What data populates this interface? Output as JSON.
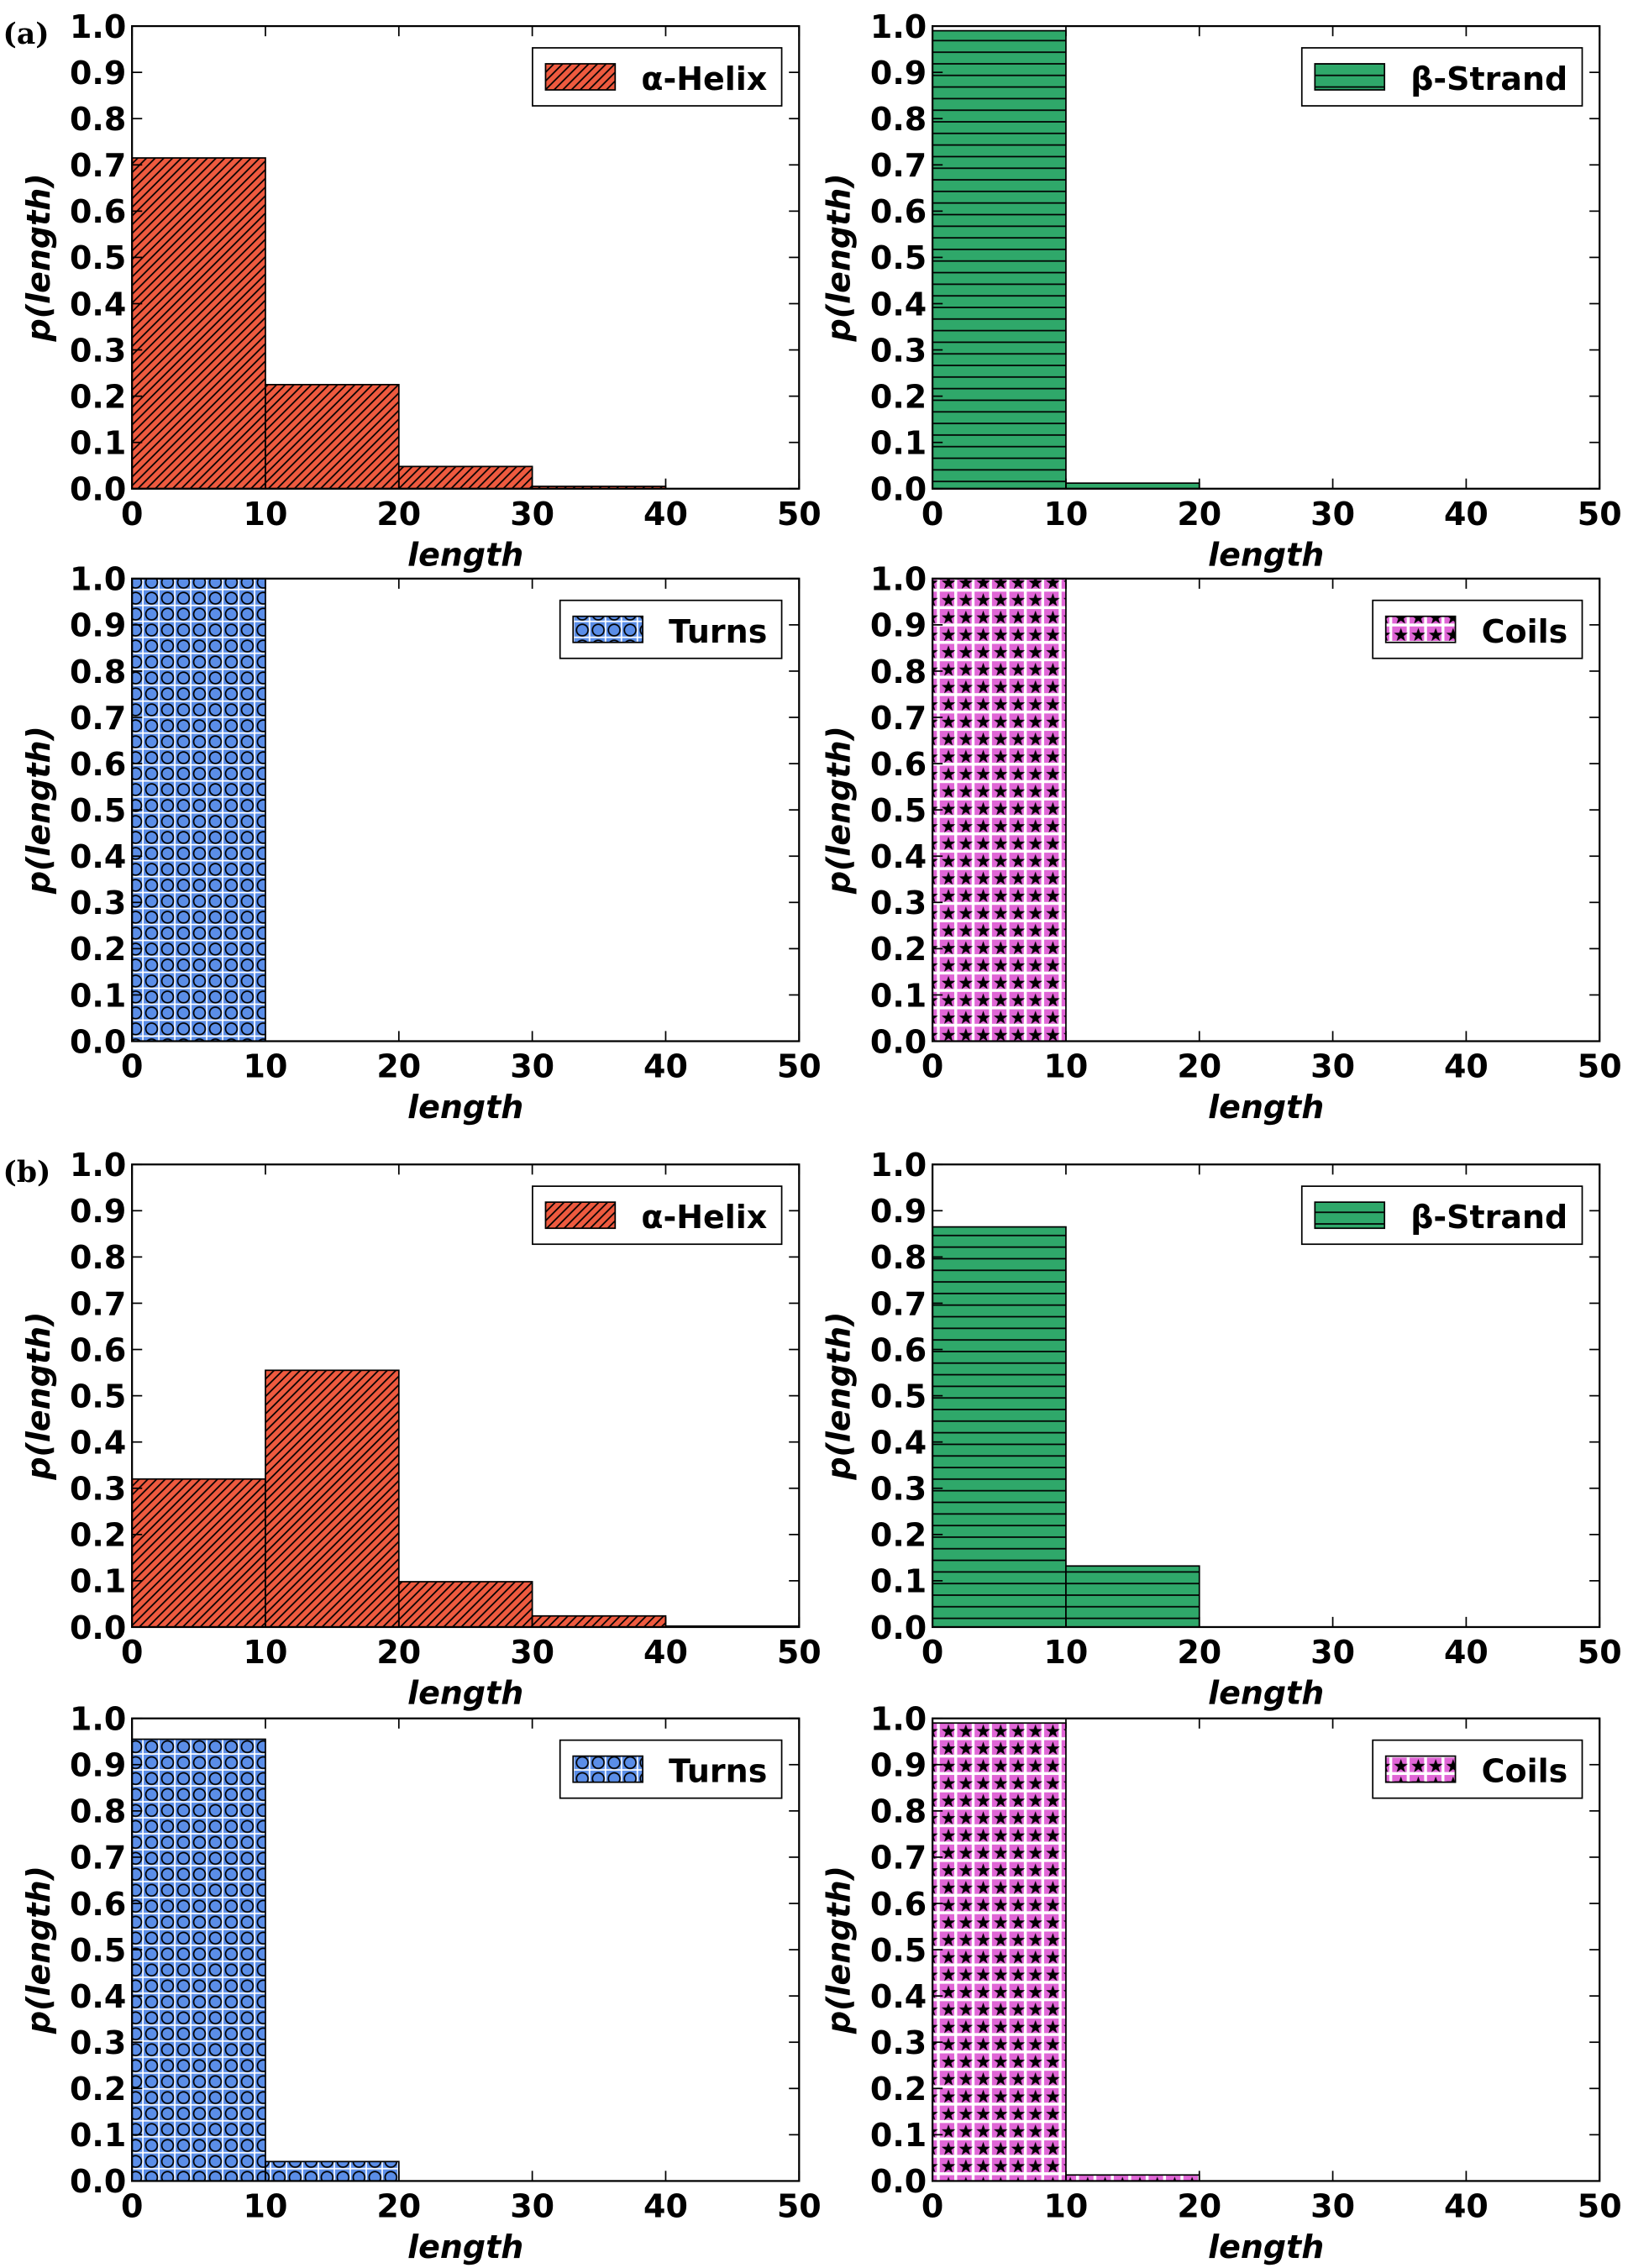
{
  "panel_labels": [
    "(a)",
    "(b)"
  ],
  "chart_data": [
    {
      "type": "histogram",
      "bins": [
        0,
        10,
        20,
        30,
        40,
        50
      ],
      "series": [
        {
          "name": "α-Helix",
          "color": "#ee5a3f",
          "hatch": "diagonal",
          "values": [
            0.715,
            0.225,
            0.048,
            0.005,
            0.0
          ]
        }
      ],
      "xlabel": "length",
      "ylabel": "p(length)",
      "xlim": [
        0,
        50
      ],
      "ylim": [
        0,
        1
      ],
      "xticks": [
        0,
        10,
        20,
        30,
        40,
        50
      ],
      "yticks": [
        {
          "value": 0,
          "label": "0.0"
        },
        0.1,
        0.2,
        0.3,
        0.4,
        0.5,
        0.6,
        0.7,
        0.8,
        0.9,
        {
          "value": 1,
          "label": "1.0"
        }
      ],
      "legend": "upper right"
    },
    {
      "type": "histogram",
      "bins": [
        0,
        10,
        20,
        30,
        40,
        50
      ],
      "series": [
        {
          "name": "β-Strand",
          "color": "#2fa86a",
          "hatch": "horizontal",
          "values": [
            0.99,
            0.012,
            0.0,
            0.0,
            0.0
          ]
        }
      ],
      "xlabel": "length",
      "ylabel": "p(length)",
      "xlim": [
        0,
        50
      ],
      "ylim": [
        0,
        1
      ],
      "xticks": [
        0,
        10,
        20,
        30,
        40,
        50
      ],
      "yticks": [
        {
          "value": 0,
          "label": "0.0"
        },
        0.1,
        0.2,
        0.3,
        0.4,
        0.5,
        0.6,
        0.7,
        0.8,
        0.9,
        {
          "value": 1,
          "label": "1.0"
        }
      ],
      "legend": "upper right"
    },
    {
      "type": "histogram",
      "bins": [
        0,
        10,
        20,
        30,
        40,
        50
      ],
      "series": [
        {
          "name": "Turns",
          "color": "#5b8ee8",
          "hatch": "circles",
          "values": [
            1.0,
            0.0,
            0.0,
            0.0,
            0.0
          ]
        }
      ],
      "xlabel": "length",
      "ylabel": "p(length)",
      "xlim": [
        0,
        50
      ],
      "ylim": [
        0,
        1
      ],
      "xticks": [
        0,
        10,
        20,
        30,
        40,
        50
      ],
      "yticks": [
        {
          "value": 0,
          "label": "0.0"
        },
        0.1,
        0.2,
        0.3,
        0.4,
        0.5,
        0.6,
        0.7,
        0.8,
        0.9,
        {
          "value": 1,
          "label": "1.0"
        }
      ],
      "legend": "upper right"
    },
    {
      "type": "histogram",
      "bins": [
        0,
        10,
        20,
        30,
        40,
        50
      ],
      "series": [
        {
          "name": "Coils",
          "color": "#e066d6",
          "hatch": "stars",
          "values": [
            1.0,
            0.0,
            0.0,
            0.0,
            0.0
          ]
        }
      ],
      "xlabel": "length",
      "ylabel": "p(length)",
      "xlim": [
        0,
        50
      ],
      "ylim": [
        0,
        1
      ],
      "xticks": [
        0,
        10,
        20,
        30,
        40,
        50
      ],
      "yticks": [
        {
          "value": 0,
          "label": "0.0"
        },
        0.1,
        0.2,
        0.3,
        0.4,
        0.5,
        0.6,
        0.7,
        0.8,
        0.9,
        {
          "value": 1,
          "label": "1.0"
        }
      ],
      "legend": "upper right"
    },
    {
      "type": "histogram",
      "bins": [
        0,
        10,
        20,
        30,
        40,
        50
      ],
      "series": [
        {
          "name": "α-Helix",
          "color": "#ee5a3f",
          "hatch": "diagonal",
          "values": [
            0.32,
            0.555,
            0.098,
            0.024,
            0.002
          ]
        }
      ],
      "xlabel": "length",
      "ylabel": "p(length)",
      "xlim": [
        0,
        50
      ],
      "ylim": [
        0,
        1
      ],
      "xticks": [
        0,
        10,
        20,
        30,
        40,
        50
      ],
      "yticks": [
        {
          "value": 0,
          "label": "0.0"
        },
        0.1,
        0.2,
        0.3,
        0.4,
        0.5,
        0.6,
        0.7,
        0.8,
        0.9,
        {
          "value": 1,
          "label": "1.0"
        }
      ],
      "legend": "upper right"
    },
    {
      "type": "histogram",
      "bins": [
        0,
        10,
        20,
        30,
        40,
        50
      ],
      "series": [
        {
          "name": "β-Strand",
          "color": "#2fa86a",
          "hatch": "horizontal",
          "values": [
            0.865,
            0.132,
            0.0,
            0.0,
            0.0
          ]
        }
      ],
      "xlabel": "length",
      "ylabel": "p(length)",
      "xlim": [
        0,
        50
      ],
      "ylim": [
        0,
        1
      ],
      "xticks": [
        0,
        10,
        20,
        30,
        40,
        50
      ],
      "yticks": [
        {
          "value": 0,
          "label": "0.0"
        },
        0.1,
        0.2,
        0.3,
        0.4,
        0.5,
        0.6,
        0.7,
        0.8,
        0.9,
        {
          "value": 1,
          "label": "1.0"
        }
      ],
      "legend": "upper right"
    },
    {
      "type": "histogram",
      "bins": [
        0,
        10,
        20,
        30,
        40,
        50
      ],
      "series": [
        {
          "name": "Turns",
          "color": "#5b8ee8",
          "hatch": "circles",
          "values": [
            0.955,
            0.042,
            0.0,
            0.0,
            0.0
          ]
        }
      ],
      "xlabel": "length",
      "ylabel": "p(length)",
      "xlim": [
        0,
        50
      ],
      "ylim": [
        0,
        1
      ],
      "xticks": [
        0,
        10,
        20,
        30,
        40,
        50
      ],
      "yticks": [
        {
          "value": 0,
          "label": "0.0"
        },
        0.1,
        0.2,
        0.3,
        0.4,
        0.5,
        0.6,
        0.7,
        0.8,
        0.9,
        {
          "value": 1,
          "label": "1.0"
        }
      ],
      "legend": "upper right"
    },
    {
      "type": "histogram",
      "bins": [
        0,
        10,
        20,
        30,
        40,
        50
      ],
      "series": [
        {
          "name": "Coils",
          "color": "#e066d6",
          "hatch": "stars",
          "values": [
            0.99,
            0.013,
            0.0,
            0.0,
            0.0
          ]
        }
      ],
      "xlabel": "length",
      "ylabel": "p(length)",
      "xlim": [
        0,
        50
      ],
      "ylim": [
        0,
        1
      ],
      "xticks": [
        0,
        10,
        20,
        30,
        40,
        50
      ],
      "yticks": [
        {
          "value": 0,
          "label": "0.0"
        },
        0.1,
        0.2,
        0.3,
        0.4,
        0.5,
        0.6,
        0.7,
        0.8,
        0.9,
        {
          "value": 1,
          "label": "1.0"
        }
      ],
      "legend": "upper right"
    }
  ]
}
